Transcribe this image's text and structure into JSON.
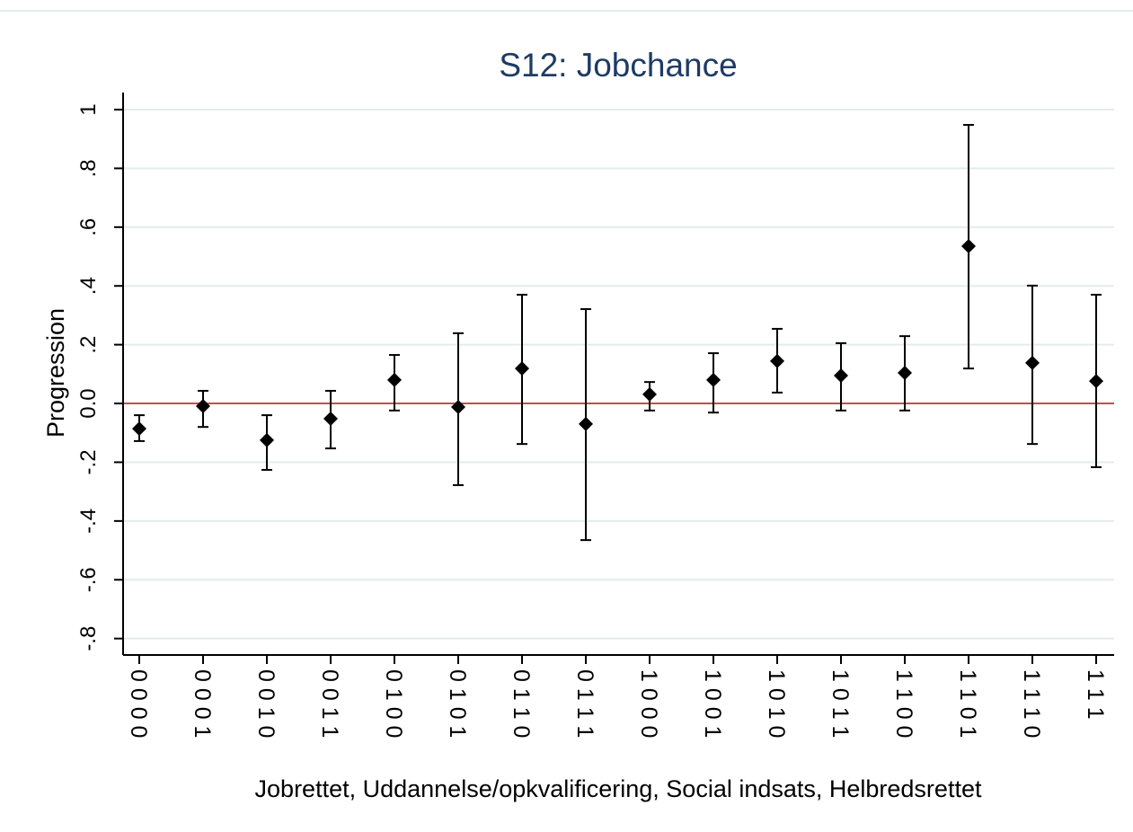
{
  "chart_data": {
    "type": "errorbar",
    "title": "S12: Jobchance",
    "x_label": "Jobrettet, Uddannelse/opkvalificering, Social indsats, Helbredsrettet",
    "y_label": "Progression",
    "categories": [
      "0 0 0 0",
      "0 0 0 1",
      "0 0 1 0",
      "0 0 1 1",
      "0 1 0 0",
      "0 1 0 1",
      "0 1 1 0",
      "0 1 1 1",
      "1 0 0 0",
      "1 0 0 1",
      "1 0 1 0",
      "1 0 1 1",
      "1 1 0 0",
      "1 1 0 1",
      "1 1 1 0",
      "1 1 1"
    ],
    "values": [
      -0.086,
      -0.009,
      -0.125,
      -0.052,
      0.08,
      -0.012,
      0.119,
      -0.07,
      0.031,
      0.08,
      0.144,
      0.095,
      0.104,
      0.535,
      0.138,
      0.076
    ],
    "lower": [
      -0.128,
      -0.08,
      -0.226,
      -0.153,
      -0.024,
      -0.278,
      -0.138,
      -0.465,
      -0.024,
      -0.031,
      0.037,
      -0.024,
      -0.024,
      0.119,
      -0.138,
      -0.217
    ],
    "upper": [
      -0.04,
      0.043,
      -0.04,
      0.043,
      0.165,
      0.239,
      0.37,
      0.321,
      0.073,
      0.171,
      0.254,
      0.205,
      0.229,
      0.948,
      0.401,
      0.37
    ],
    "color": "#000000",
    "reference_line": {
      "value": 0,
      "color": "#c0504d"
    },
    "ylim": [
      -0.856,
      1.058
    ],
    "yticks": [
      1,
      {
        "value": 0.8,
        "label": ".8"
      },
      {
        "value": 0.6,
        "label": ".6"
      },
      {
        "value": 0.4,
        "label": ".4"
      },
      {
        "value": 0.2,
        "label": ".2"
      },
      {
        "value": 0,
        "label": "0.0"
      },
      {
        "value": -0.2,
        "label": "-.2"
      },
      {
        "value": -0.4,
        "label": "-.4"
      },
      {
        "value": -0.6,
        "label": "-.6"
      },
      {
        "value": -0.8,
        "label": "-.8"
      }
    ],
    "grid": true
  }
}
